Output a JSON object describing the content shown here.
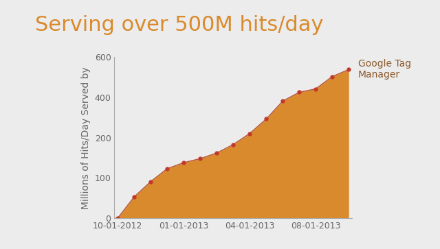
{
  "chart_data": {
    "type": "area",
    "title": "Serving over 500M hits/day",
    "y_label": "Millions of Hits/Day Served by",
    "categories": [
      "10-01-2012",
      null,
      null,
      null,
      "01-01-2013",
      null,
      null,
      null,
      "04-01-2013",
      null,
      null,
      null,
      "08-01-2013",
      null,
      null
    ],
    "series": [
      {
        "name": "Google Tag Manager",
        "color": "#d98a2c",
        "marker": "o",
        "values": [
          0,
          53,
          91,
          123,
          138,
          148,
          162,
          183,
          221,
          293,
          382,
          426,
          443,
          504,
          539
        ]
      }
    ],
    "ylim": [
      0,
      600
    ],
    "yticks": [
      0,
      100,
      200,
      400,
      600
    ],
    "grid": false
  }
}
